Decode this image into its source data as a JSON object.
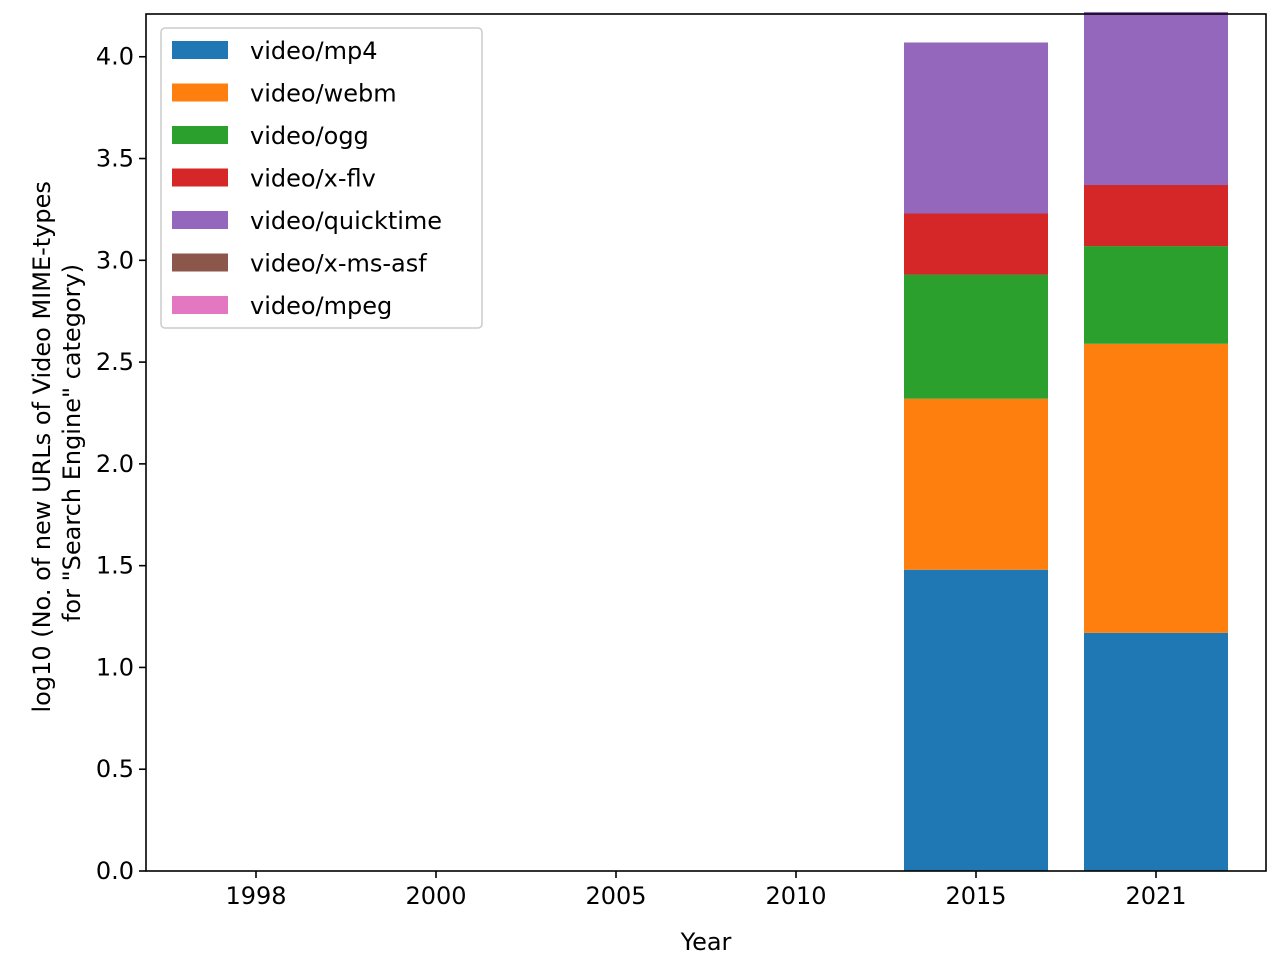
{
  "chart_data": {
    "type": "bar",
    "stacked": true,
    "title": "",
    "xlabel": "Year",
    "ylabel_lines": [
      "log10 (No. of new URLs of Video MIME-types",
      "for \"Search Engine\" category)"
    ],
    "categories": [
      "1998",
      "2000",
      "2005",
      "2010",
      "2015",
      "2021"
    ],
    "yticks": [
      "0.0",
      "0.5",
      "1.0",
      "1.5",
      "2.0",
      "2.5",
      "3.0",
      "3.5",
      "4.0"
    ],
    "ylim": [
      0,
      4.21
    ],
    "grid": false,
    "legend_position": "upper-left",
    "series": [
      {
        "name": "video/mp4",
        "color": "#1f77b4",
        "values": [
          0,
          0,
          0,
          0,
          1.48,
          1.17
        ]
      },
      {
        "name": "video/webm",
        "color": "#ff7f0e",
        "values": [
          0,
          0,
          0,
          0,
          0.84,
          1.42
        ]
      },
      {
        "name": "video/ogg",
        "color": "#2ca02c",
        "values": [
          0,
          0,
          0,
          0,
          0.61,
          0.48
        ]
      },
      {
        "name": "video/x-flv",
        "color": "#d62728",
        "values": [
          0,
          0,
          0,
          0,
          0.3,
          0.3
        ]
      },
      {
        "name": "video/quicktime",
        "color": "#9467bd",
        "values": [
          0,
          0,
          0,
          0,
          0.84,
          0.85
        ]
      },
      {
        "name": "video/x-ms-asf",
        "color": "#8c564b",
        "values": [
          0,
          0,
          0,
          0,
          0,
          0
        ]
      },
      {
        "name": "video/mpeg",
        "color": "#e377c2",
        "values": [
          0,
          0,
          0,
          0,
          0,
          0
        ]
      }
    ]
  }
}
